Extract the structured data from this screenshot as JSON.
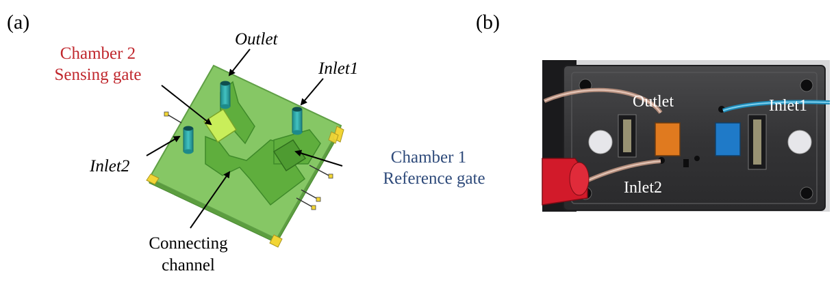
{
  "panel_a": {
    "label": "(a)",
    "outlet": "Outlet",
    "inlet1": "Inlet1",
    "inlet2": "Inlet2",
    "chamber2_line1": "Chamber 2",
    "chamber2_line2": "Sensing gate",
    "chamber1_line1": "Chamber 1",
    "chamber1_line2": "Reference gate",
    "channel_line1": "Connecting",
    "channel_line2": "channel"
  },
  "panel_b": {
    "label": "(b)",
    "outlet": "Outlet",
    "inlet1": "Inlet1",
    "inlet2": "Inlet2"
  },
  "colors": {
    "chamber2_text": "#c0272d",
    "chamber1_text": "#2e4a7a",
    "chip_green": "#7cc35a",
    "channel_green": "#5fae3d",
    "tube_teal": "#2aa6a6",
    "pad_yellow": "#f2d535"
  }
}
